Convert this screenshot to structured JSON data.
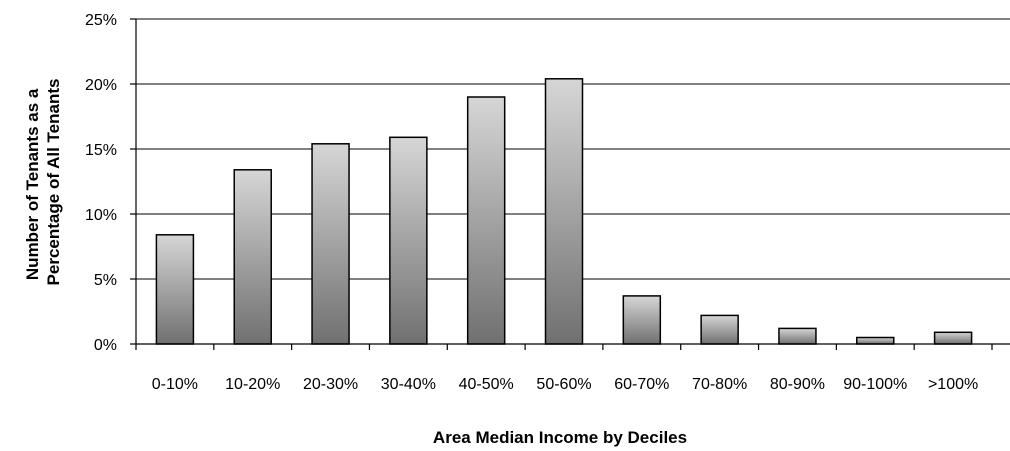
{
  "chart_data": {
    "type": "bar",
    "title": "",
    "xlabel": "Area Median Income by Deciles",
    "ylabel_lines": [
      "Number of Tenants as a",
      "Percentage of All Tenants"
    ],
    "categories": [
      "0-10%",
      "10-20%",
      "20-30%",
      "30-40%",
      "40-50%",
      "50-60%",
      "60-70%",
      "70-80%",
      "80-90%",
      "90-100%",
      ">100%"
    ],
    "values": [
      8.4,
      13.4,
      15.4,
      15.9,
      19.0,
      20.4,
      3.7,
      2.2,
      1.2,
      0.5,
      0.9
    ],
    "ylim": [
      0,
      25
    ],
    "yticks": [
      0,
      5,
      10,
      15,
      20,
      25
    ],
    "ytick_labels": [
      "0%",
      "5%",
      "10%",
      "15%",
      "20%",
      "25%"
    ],
    "grid": true,
    "legend": "none",
    "colors": {
      "bar_light": "#d6d6d6",
      "bar_dark": "#707070",
      "outline": "#000000",
      "grid": "#000000"
    }
  }
}
